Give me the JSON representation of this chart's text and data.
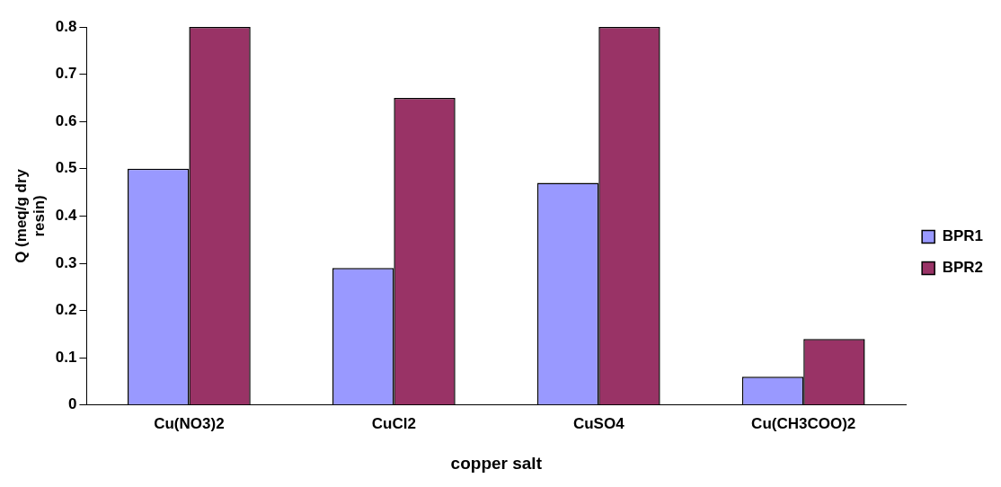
{
  "chart_data": {
    "type": "bar",
    "xlabel": "copper salt",
    "ylabel": "Q (meq/g dry resin)",
    "categories": [
      "Cu(NO3)2",
      "CuCl2",
      "CuSO4",
      "Cu(CH3COO)2"
    ],
    "series": [
      {
        "name": "BPR1",
        "color": "#9999ff",
        "values": [
          0.5,
          0.29,
          0.47,
          0.06
        ]
      },
      {
        "name": "BPR2",
        "color": "#993366",
        "values": [
          0.8,
          0.65,
          0.8,
          0.14
        ]
      }
    ],
    "ylim": [
      0,
      0.8
    ],
    "yticks": [
      0,
      0.1,
      0.2,
      0.3,
      0.4,
      0.5,
      0.6,
      0.7,
      0.8
    ],
    "grid": false,
    "legend": "right"
  }
}
